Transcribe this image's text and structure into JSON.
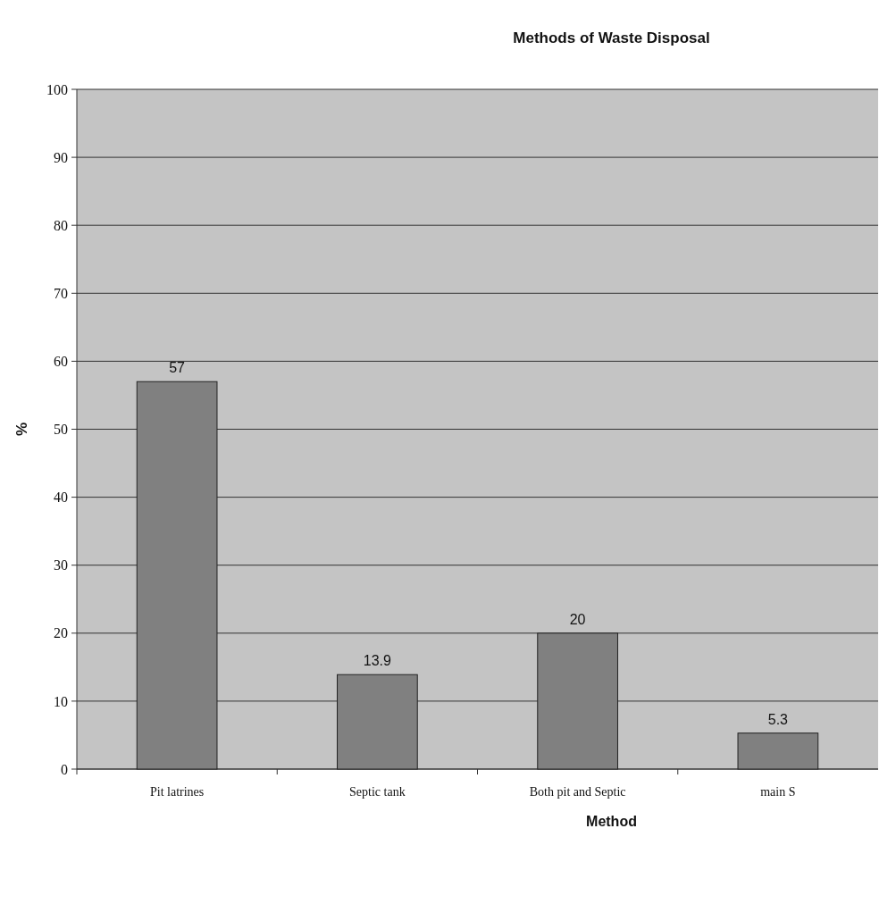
{
  "chart_data": {
    "type": "bar",
    "title": "Methods of Waste Disposal",
    "xlabel": "Method",
    "ylabel": "%",
    "categories": [
      "Pit latrines",
      "Septic tank",
      "Both pit and Septic",
      "main S"
    ],
    "values": [
      57,
      13.9,
      20,
      5.3
    ],
    "color": "#808080",
    "ylim": [
      0,
      100
    ],
    "yticks": [
      0,
      10,
      20,
      30,
      40,
      50,
      60,
      70,
      80,
      90,
      100
    ],
    "grid": "y",
    "data_labels": true
  }
}
